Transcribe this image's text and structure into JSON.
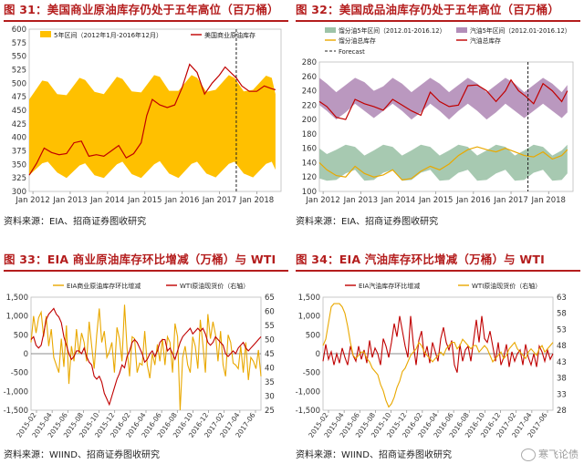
{
  "panels": [
    {
      "title": "图 31：美国商业原油库存仍处于五年高位（百万桶）",
      "source": "资料来源：EIA、招商证券图收研究"
    },
    {
      "title": "图 32：美国成品油库存仍处于五年高位（百万桶）",
      "source": "资料来源：EIA、招商证券图收研究"
    },
    {
      "title": "图 33：EIA 商业原油库存环比增减（万桶）与 WTI",
      "source": "资料来源：WIIND、招商证券图收研究"
    },
    {
      "title": "图 34：EIA 汽油库存环比增减（万桶）与 WTI",
      "source": "资料来源：WIIND、招商证券图收研究"
    }
  ],
  "watermark": "寒飞论债",
  "colors": {
    "orange": "#FFC000",
    "darkred": "#C00000",
    "green": "#9DC3A8",
    "purple": "#B28DB8",
    "red": "#B41D1D",
    "accent": "#E9A800"
  },
  "chart_data": [
    {
      "type": "area",
      "legend": [
        "5年区间（2012年1月-2016年12月）",
        "美国商业原油库存"
      ],
      "y_ticks": [
        300,
        325,
        350,
        375,
        400,
        425,
        450,
        475,
        500,
        525,
        550,
        575,
        600
      ],
      "ylim": [
        300,
        600
      ],
      "x_ticks": [
        "Jan 2012",
        "Jan 2013",
        "Jan 2014",
        "Jan 2015",
        "Jan 2016",
        "Jan 2017",
        "Jan 2018"
      ],
      "xlim": [
        2012.0,
        2018.75
      ],
      "vline_x": 2017.55,
      "band": {
        "x": [
          2012.0,
          2012.35,
          2012.5,
          2012.75,
          2013.0,
          2013.35,
          2013.5,
          2013.75,
          2014.0,
          2014.35,
          2014.5,
          2014.75,
          2015.0,
          2015.35,
          2015.5,
          2015.75,
          2016.0,
          2016.35,
          2016.5,
          2016.75,
          2017.0,
          2017.35,
          2017.5,
          2017.75,
          2018.0,
          2018.35,
          2018.5,
          2018.6
        ],
        "low": [
          330,
          352,
          355,
          335,
          325,
          348,
          352,
          330,
          325,
          350,
          355,
          332,
          325,
          350,
          356,
          333,
          325,
          351,
          355,
          333,
          326,
          351,
          355,
          333,
          326,
          351,
          355,
          340
        ],
        "high": [
          470,
          505,
          503,
          480,
          478,
          510,
          506,
          484,
          480,
          512,
          508,
          485,
          483,
          515,
          512,
          486,
          486,
          515,
          510,
          484,
          488,
          515,
          510,
          485,
          488,
          514,
          510,
          480
        ]
      },
      "series": [
        {
          "name": "美国商业原油库存",
          "x": [
            2012.0,
            2012.2,
            2012.4,
            2012.6,
            2012.8,
            2013.0,
            2013.2,
            2013.4,
            2013.6,
            2013.8,
            2014.0,
            2014.2,
            2014.4,
            2014.6,
            2014.8,
            2015.0,
            2015.15,
            2015.3,
            2015.5,
            2015.7,
            2015.9,
            2016.1,
            2016.3,
            2016.5,
            2016.7,
            2016.9,
            2017.1,
            2017.25,
            2017.4,
            2017.55,
            2017.7,
            2017.9,
            2018.1,
            2018.3,
            2018.5,
            2018.6
          ],
          "y": [
            330,
            352,
            380,
            372,
            368,
            370,
            390,
            393,
            365,
            368,
            365,
            375,
            385,
            362,
            370,
            390,
            440,
            470,
            460,
            455,
            460,
            492,
            535,
            520,
            480,
            500,
            515,
            530,
            520,
            510,
            495,
            485,
            485,
            495,
            490,
            488
          ]
        }
      ]
    },
    {
      "type": "area",
      "legend": [
        "馏分油5年区间（2012.01-2016.12）",
        "汽油5年区间（2012.01-2016.12）",
        "馏分油总库存",
        "汽油总库存",
        "Forecast"
      ],
      "y_ticks": [
        100,
        120,
        140,
        160,
        180,
        200,
        220,
        240,
        260,
        280
      ],
      "ylim": [
        100,
        280
      ],
      "x_ticks": [
        "Jan 2012",
        "Jan 2013",
        "Jan 2014",
        "Jan 2015",
        "Jan 2016",
        "Jan 2017",
        "Jan 2018"
      ],
      "xlim": [
        2012.0,
        2018.75
      ],
      "vline_x": 2017.55,
      "bands": [
        {
          "name": "汽油5年区间（2012.01-2016.12）",
          "x": [
            2012.0,
            2012.2,
            2012.45,
            2012.7,
            2012.95,
            2013.2,
            2013.45,
            2013.7,
            2013.95,
            2014.2,
            2014.45,
            2014.7,
            2014.95,
            2015.2,
            2015.45,
            2015.7,
            2015.95,
            2016.2,
            2016.45,
            2016.7,
            2016.95,
            2017.2,
            2017.45,
            2017.7,
            2017.95,
            2018.2,
            2018.45,
            2018.6
          ],
          "low": [
            220,
            212,
            200,
            210,
            222,
            212,
            202,
            212,
            222,
            212,
            200,
            210,
            222,
            212,
            200,
            212,
            222,
            212,
            200,
            210,
            222,
            212,
            202,
            212,
            222,
            212,
            202,
            210
          ],
          "high": [
            258,
            250,
            238,
            248,
            258,
            252,
            240,
            246,
            258,
            250,
            238,
            248,
            258,
            250,
            238,
            248,
            258,
            250,
            238,
            248,
            258,
            250,
            238,
            248,
            258,
            250,
            238,
            248
          ]
        },
        {
          "name": "馏分油5年区间（2012.01-2016.12）",
          "x": [
            2012.0,
            2012.2,
            2012.45,
            2012.7,
            2012.95,
            2013.2,
            2013.45,
            2013.7,
            2013.95,
            2014.2,
            2014.45,
            2014.7,
            2014.95,
            2015.2,
            2015.45,
            2015.7,
            2015.95,
            2016.2,
            2016.45,
            2016.7,
            2016.95,
            2017.2,
            2017.45,
            2017.7,
            2017.95,
            2018.2,
            2018.45,
            2018.6
          ],
          "low": [
            118,
            115,
            116,
            125,
            130,
            115,
            116,
            126,
            130,
            115,
            116,
            126,
            130,
            115,
            116,
            126,
            130,
            115,
            116,
            125,
            130,
            115,
            116,
            126,
            130,
            115,
            116,
            125
          ],
          "high": [
            160,
            152,
            158,
            165,
            162,
            150,
            157,
            165,
            162,
            150,
            157,
            165,
            162,
            150,
            157,
            165,
            162,
            150,
            157,
            165,
            162,
            150,
            157,
            165,
            162,
            150,
            157,
            165
          ]
        }
      ],
      "series": [
        {
          "name": "汽油总库存",
          "x": [
            2012.0,
            2012.2,
            2012.45,
            2012.7,
            2012.95,
            2013.2,
            2013.45,
            2013.7,
            2013.95,
            2014.2,
            2014.45,
            2014.7,
            2014.95,
            2015.2,
            2015.45,
            2015.7,
            2015.95,
            2016.2,
            2016.45,
            2016.7,
            2016.95,
            2017.1,
            2017.3,
            2017.5,
            2017.7,
            2017.95,
            2018.2,
            2018.45,
            2018.6
          ],
          "y": [
            225,
            218,
            203,
            200,
            228,
            222,
            218,
            213,
            228,
            220,
            212,
            206,
            238,
            225,
            218,
            220,
            247,
            248,
            240,
            225,
            240,
            255,
            240,
            232,
            222,
            250,
            240,
            225,
            240
          ]
        },
        {
          "name": "馏分油总库存",
          "x": [
            2012.0,
            2012.2,
            2012.45,
            2012.7,
            2012.95,
            2013.2,
            2013.45,
            2013.7,
            2013.95,
            2014.2,
            2014.45,
            2014.7,
            2014.95,
            2015.2,
            2015.45,
            2015.7,
            2015.95,
            2016.2,
            2016.45,
            2016.7,
            2016.95,
            2017.2,
            2017.45,
            2017.7,
            2017.95,
            2018.2,
            2018.45,
            2018.6
          ],
          "y": [
            140,
            130,
            122,
            120,
            135,
            125,
            120,
            123,
            130,
            116,
            118,
            128,
            135,
            130,
            138,
            150,
            158,
            162,
            158,
            155,
            160,
            155,
            150,
            148,
            155,
            145,
            150,
            158
          ]
        }
      ]
    },
    {
      "type": "line",
      "legend": [
        "EIA商业原油库存环比增减",
        "WTI原油现货价（右轴）"
      ],
      "y_ticks": [
        -1500,
        -1000,
        -500,
        0,
        500,
        1000,
        1500
      ],
      "y_tick_labels": [
        "-1,500",
        "-1,000",
        "-500",
        "0",
        "500",
        "1,000",
        "1,500"
      ],
      "ylim": [
        -1500,
        1500
      ],
      "y2_ticks": [
        25,
        30,
        35,
        40,
        45,
        50,
        55,
        60,
        65
      ],
      "y2lim": [
        25,
        65
      ],
      "x_ticks": [
        "2015-02",
        "2015-04",
        "2015-06",
        "2015-08",
        "2015-10",
        "2015-12",
        "2016-02",
        "2016-04",
        "2016-06",
        "2016-08",
        "2016-10",
        "2016-12",
        "2017-02",
        "2017-04",
        "2017-06"
      ],
      "series": [
        {
          "name": "EIA商业原油库存环比增减",
          "axis": "left",
          "y": [
            300,
            1000,
            550,
            950,
            1100,
            450,
            1000,
            200,
            650,
            -100,
            -300,
            -500,
            400,
            -350,
            750,
            -800,
            200,
            -200,
            650,
            0,
            550,
            300,
            -200,
            850,
            200,
            -400,
            500,
            1200,
            300,
            600,
            -100,
            50,
            300,
            -500,
            700,
            400,
            -200,
            1300,
            150,
            -600,
            450,
            400,
            -500,
            -250,
            -300,
            600,
            -300,
            -650,
            0,
            -300,
            250,
            -200,
            400,
            -300,
            450,
            300,
            -500,
            800,
            450,
            -1500,
            -100,
            200,
            -300,
            -500,
            450,
            200,
            -400,
            900,
            250,
            -500,
            1050,
            400,
            850,
            500,
            -200,
            600,
            -300,
            -600,
            500,
            300,
            -250,
            -300,
            -400,
            200,
            -500,
            300,
            -700,
            -100,
            -200,
            -400,
            100,
            -600
          ]
        },
        {
          "name": "WTI原油现货价（右轴）",
          "axis": "right",
          "y": [
            50,
            51,
            48,
            47,
            48,
            52,
            57,
            59,
            60,
            61,
            59,
            58,
            56,
            51,
            48,
            45,
            43,
            44,
            46,
            46,
            45,
            47,
            44,
            42,
            41,
            37,
            36,
            37,
            35,
            31,
            29,
            27,
            30,
            33,
            36,
            38,
            41,
            40,
            44,
            46,
            49,
            50,
            49,
            47,
            45,
            42,
            43,
            45,
            46,
            44,
            46,
            49,
            50,
            50,
            46,
            47,
            45,
            43,
            46,
            49,
            51,
            52,
            53,
            54,
            52,
            53,
            54,
            53,
            54,
            52,
            49,
            48,
            49,
            51,
            50,
            49,
            48,
            45,
            44,
            45,
            46,
            45,
            47,
            48,
            49,
            47,
            46,
            47,
            48,
            49,
            50,
            51
          ]
        }
      ]
    },
    {
      "type": "line",
      "legend": [
        "EIA汽油库存环比增减",
        "WTI原油现货价（右轴）"
      ],
      "y_ticks": [
        -1500,
        -1000,
        -500,
        0,
        500,
        1000,
        1500
      ],
      "y_tick_labels": [
        "-1,500",
        "-1,000",
        "-500",
        "0",
        "500",
        "1,000",
        "1,500"
      ],
      "ylim": [
        -1500,
        1500
      ],
      "y2_ticks": [
        28,
        33,
        38,
        43,
        48,
        53,
        58,
        63
      ],
      "y2lim": [
        28,
        63
      ],
      "x_ticks": [
        "2015-02",
        "2015-04",
        "2015-06",
        "2015-08",
        "2015-10",
        "2015-12",
        "2016-02",
        "2016-04",
        "2016-06",
        "2016-08",
        "2016-10",
        "2016-12",
        "2017-02",
        "2017-04",
        "2017-06"
      ],
      "series": [
        {
          "name": "EIA汽油库存环比增减",
          "axis": "left",
          "y": [
            -200,
            250,
            -150,
            50,
            -300,
            0,
            -250,
            150,
            -100,
            -300,
            200,
            -50,
            -200,
            200,
            -150,
            100,
            -250,
            350,
            -100,
            150,
            0,
            -300,
            400,
            200,
            -100,
            300,
            800,
            450,
            1000,
            600,
            200,
            -100,
            1000,
            250,
            -300,
            350,
            600,
            -100,
            200,
            -250,
            300,
            50,
            -200,
            400,
            700,
            300,
            100,
            350,
            -300,
            -500,
            250,
            -200,
            100,
            200,
            -200,
            350,
            900,
            300,
            1000,
            400,
            300,
            600,
            200,
            -200,
            300,
            -300,
            -100,
            250,
            -350,
            50,
            -200,
            0,
            100,
            -300,
            250,
            -100,
            -300,
            0,
            -350,
            200,
            50,
            -200,
            100,
            -150,
            0
          ]
        },
        {
          "name": "WTI原油现货价（右轴）",
          "axis": "right",
          "y": [
            48,
            50,
            55,
            60,
            61,
            61,
            61,
            60,
            58,
            54,
            49,
            45,
            44,
            45,
            46,
            46,
            44,
            43,
            41,
            40,
            39,
            36,
            34,
            31,
            29,
            30,
            32,
            35,
            37,
            40,
            41,
            43,
            45,
            46,
            47,
            49,
            48,
            46,
            45,
            44,
            43,
            44,
            45,
            46,
            45,
            47,
            48,
            49,
            49,
            47,
            48,
            50,
            49,
            48,
            47,
            48,
            48,
            46,
            47,
            48,
            47,
            45,
            43,
            44,
            45,
            46,
            44,
            45,
            47,
            48,
            49,
            47,
            46,
            45,
            44,
            46,
            47,
            46,
            45,
            47,
            48,
            46,
            47,
            48,
            49
          ]
        }
      ]
    }
  ]
}
